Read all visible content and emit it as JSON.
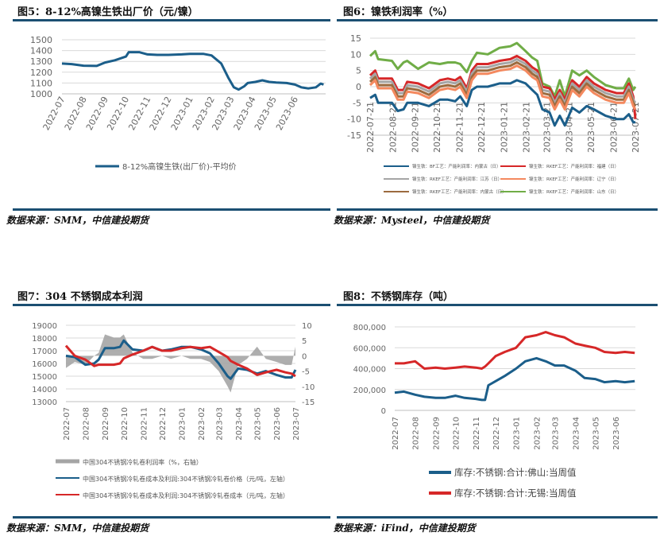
{
  "titles": {
    "fig5": "图5：8-12%高镍生铁出厂价（元/镍）",
    "fig6": "图6：镍铁利润率（%）",
    "fig7": "图7：304 不锈钢成本利润",
    "fig8": "图8：不锈钢库存（吨）"
  },
  "sources": {
    "fig5": "数据来源：SMM，中信建投期货",
    "fig6": "数据来源：Mysteel，中信建投期货",
    "fig7": "数据来源：SMM，中信建投期货",
    "fig8": "数据来源：iFind，中信建投期货"
  },
  "colors": {
    "rule": "#1b4f72"
  },
  "chart_data": [
    {
      "id": "c5",
      "type": "line",
      "title": "图5：8-12%高镍生铁出厂价（元/镍）",
      "ylim": [
        1000,
        1500
      ],
      "yticks": [
        "1500",
        "1400",
        "1300",
        "1200",
        "1100",
        "1000"
      ],
      "xticks": [
        "2022-07",
        "2022-08",
        "2022-09",
        "2022-10",
        "2022-11",
        "2022-12",
        "2023-01",
        "2023-02",
        "2023-03",
        "2023-04",
        "2023-05",
        "2023-06"
      ],
      "grid": true,
      "legend": "bottom",
      "series": [
        {
          "name": "8-12%高镍生铁(出厂价)-平均价",
          "color": "#1b5e8a",
          "x": [
            "2022-07-01",
            "2022-07-15",
            "2022-08-01",
            "2022-08-20",
            "2022-09-01",
            "2022-09-15",
            "2022-10-01",
            "2022-10-05",
            "2022-10-20",
            "2022-11-01",
            "2022-11-15",
            "2022-12-01",
            "2022-12-20",
            "2023-01-01",
            "2023-01-20",
            "2023-02-01",
            "2023-02-15",
            "2023-02-25",
            "2023-03-05",
            "2023-03-12",
            "2023-03-20",
            "2023-03-25",
            "2023-04-05",
            "2023-04-15",
            "2023-04-25",
            "2023-05-05",
            "2023-05-20",
            "2023-06-01",
            "2023-06-10",
            "2023-06-20",
            "2023-07-01",
            "2023-07-08",
            "2023-07-12"
          ],
          "values": [
            1280,
            1275,
            1260,
            1258,
            1290,
            1310,
            1345,
            1385,
            1385,
            1365,
            1360,
            1360,
            1365,
            1370,
            1370,
            1355,
            1280,
            1150,
            1060,
            1040,
            1070,
            1100,
            1110,
            1125,
            1110,
            1105,
            1100,
            1085,
            1060,
            1050,
            1060,
            1095,
            1085
          ]
        }
      ]
    },
    {
      "id": "c6",
      "type": "line",
      "title": "图6：镍铁利润率（%）",
      "ylim": [
        -15,
        15
      ],
      "yticks": [
        "15",
        "10",
        "5",
        "0",
        "-5",
        "-10",
        "-15"
      ],
      "xticks": [
        "2022-07-21",
        "2022-08-21",
        "2022-09-21",
        "2022-10-21",
        "2022-11-21",
        "2022-12-21",
        "2023-01-21",
        "2023-02-21",
        "2023-03-21",
        "2023-04-21",
        "2023-05-21",
        "2023-06-21",
        "2023-07-21"
      ],
      "grid": true,
      "legend": "bottom",
      "x": [
        "2022-07-21",
        "2022-07-28",
        "2022-08-01",
        "2022-08-20",
        "2022-08-28",
        "2022-09-05",
        "2022-09-10",
        "2022-09-25",
        "2022-10-10",
        "2022-10-25",
        "2022-11-05",
        "2022-11-15",
        "2022-11-22",
        "2022-12-01",
        "2022-12-08",
        "2022-12-15",
        "2022-12-30",
        "2023-01-15",
        "2023-01-30",
        "2023-02-08",
        "2023-02-20",
        "2023-03-01",
        "2023-03-08",
        "2023-03-15",
        "2023-03-25",
        "2023-04-01",
        "2023-04-08",
        "2023-04-15",
        "2023-04-25",
        "2023-05-05",
        "2023-05-15",
        "2023-05-25",
        "2023-06-10",
        "2023-06-25",
        "2023-07-05",
        "2023-07-12",
        "2023-07-18",
        "2023-07-21"
      ],
      "series": [
        {
          "name": "镍生铁：RKEF工艺：产能利润率：山东（日）",
          "color": "#70ad47",
          "values": [
            9.5,
            11,
            8.5,
            8,
            5.5,
            7.5,
            8,
            5.5,
            7.5,
            7,
            7.5,
            7.5,
            7,
            4.5,
            8,
            10.5,
            10,
            12,
            12.5,
            13.5,
            11,
            9,
            8,
            1,
            0,
            -3,
            2,
            -3,
            5,
            3.5,
            5,
            3,
            0.5,
            -0.5,
            -0.5,
            2.5,
            -1,
            0
          ]
        },
        {
          "name": "镍生铁：RKEF工艺：产能利润率：福建（日）",
          "color": "#d62728",
          "values": [
            3.5,
            5,
            2.5,
            2.5,
            -1,
            -1,
            1.5,
            1,
            -0.5,
            2,
            2.5,
            2,
            3,
            -0.5,
            5,
            7,
            7,
            8,
            8.5,
            9.5,
            8,
            6,
            5,
            0,
            -0.5,
            -4,
            -1,
            -4,
            2,
            0,
            3,
            1,
            -1,
            -2,
            -2,
            1,
            -3,
            -10
          ]
        },
        {
          "name": "镍生铁：RKEF工艺：产能利润率：江苏（日）",
          "color": "#a5a5a5",
          "values": [
            2.5,
            4,
            1.5,
            1.5,
            -2,
            -2,
            0.5,
            0,
            -1.5,
            1,
            1.5,
            1,
            2,
            -1.5,
            4,
            6,
            6,
            7,
            7.5,
            8.5,
            7,
            5,
            4,
            -1,
            -1.5,
            -5,
            -2,
            -5,
            1,
            -1,
            2,
            0,
            -2,
            -3,
            -3,
            0,
            -4,
            -5
          ]
        },
        {
          "name": "镍生铁：RKEF工艺：产能利润率：内蒙古（日）",
          "color": "#9c6b3f",
          "values": [
            1.5,
            3,
            0.5,
            0.5,
            -3,
            -3,
            -0.5,
            -1,
            -2.5,
            0,
            0.5,
            0,
            1,
            -2.5,
            3,
            5,
            5,
            6,
            6.5,
            7.5,
            6,
            4,
            3,
            -2,
            -2.5,
            -6,
            -3,
            -6,
            0,
            -2,
            1,
            -1,
            -3,
            -4,
            -4,
            -1,
            -5,
            -6
          ]
        },
        {
          "name": "镍生铁：RKEF工艺：产能利润率：辽宁（日）",
          "color": "#f4895f",
          "values": [
            0.5,
            2,
            -0.5,
            -0.5,
            -4,
            -4,
            -1.5,
            -2,
            -3.5,
            -1,
            -0.5,
            -1,
            0,
            -3.5,
            2,
            4,
            4,
            5,
            5.5,
            6.5,
            5,
            3,
            2,
            -3,
            -3.5,
            -7,
            -4,
            -7,
            -1,
            -3,
            0,
            -2,
            -4,
            -5,
            -5,
            -2,
            -6,
            -7
          ]
        },
        {
          "name": "镍生铁：BF工艺：产能利润率：内蒙古（日）",
          "color": "#1b5e8a",
          "values": [
            -3.5,
            -2.5,
            -5,
            -5,
            -7.5,
            -7,
            -5,
            -5,
            -6,
            -4,
            -4,
            -4.5,
            -3,
            -6,
            -1,
            0,
            0,
            1,
            1,
            2,
            1,
            -1,
            -2.5,
            -7,
            -8,
            -12,
            -9,
            -12,
            -6.5,
            -8,
            -6,
            -7,
            -9,
            -10,
            -10,
            -8.5,
            -11,
            -11
          ]
        }
      ]
    },
    {
      "id": "c7",
      "type": "line",
      "title": "图7：304 不锈钢成本利润",
      "ylim": [
        13000,
        19000
      ],
      "y2lim": [
        -15,
        10
      ],
      "yticks": [
        "19000",
        "18000",
        "17000",
        "16000",
        "15000",
        "14000",
        "13000"
      ],
      "y2ticks": [
        "10",
        "5",
        "0",
        "-5",
        "-10",
        "-15"
      ],
      "xticks": [
        "2022-07",
        "2022-08",
        "2022-09",
        "2022-10",
        "2022-11",
        "2022-12",
        "2023-01",
        "2023-02",
        "2023-03",
        "2023-04",
        "2023-05",
        "2023-06",
        "2023-07"
      ],
      "grid": true,
      "legend": "bottom",
      "x": [
        "2022-07-01",
        "2022-07-15",
        "2022-08-01",
        "2022-08-15",
        "2022-08-22",
        "2022-09-01",
        "2022-09-15",
        "2022-09-25",
        "2022-10-01",
        "2022-10-15",
        "2022-11-01",
        "2022-11-15",
        "2022-12-01",
        "2022-12-15",
        "2023-01-01",
        "2023-01-15",
        "2023-02-01",
        "2023-02-15",
        "2023-03-01",
        "2023-03-15",
        "2023-03-20",
        "2023-04-01",
        "2023-04-15",
        "2023-05-01",
        "2023-05-15",
        "2023-06-01",
        "2023-06-15",
        "2023-06-25",
        "2023-07-01"
      ],
      "series": [
        {
          "name": "中国304不锈钢冷轧卷利润率（%，右轴）",
          "color": "#a5a5a5",
          "axis": "right",
          "kind": "area",
          "values": [
            -4,
            -2,
            -3,
            0,
            1,
            7,
            6,
            6,
            7,
            1,
            -1,
            -1,
            0,
            -1,
            0,
            -1,
            -1,
            -2,
            -5,
            -10,
            -12,
            -3,
            -1,
            3,
            -1,
            -2,
            -3,
            -3,
            3
          ]
        },
        {
          "name": "中国304不锈钢冷轧卷成本及利润:304不锈钢冷轧卷价格（元/吨，左轴）",
          "color": "#1b5e8a",
          "axis": "left",
          "values": [
            16600,
            16500,
            15900,
            16000,
            16300,
            17200,
            17200,
            17300,
            17800,
            17100,
            17000,
            17300,
            17000,
            17100,
            17300,
            17300,
            17100,
            16800,
            16000,
            15000,
            14800,
            15600,
            15500,
            15200,
            15400,
            15100,
            14900,
            14900,
            15500
          ]
        },
        {
          "name": "中国304不锈钢冷轧卷成本及利润:304不锈钢冷轧卷成本（元/吨，左轴）",
          "color": "#d62728",
          "axis": "left",
          "values": [
            17400,
            16600,
            16300,
            15800,
            15900,
            15900,
            15900,
            16000,
            16400,
            16700,
            17000,
            17300,
            17000,
            17000,
            17200,
            17300,
            17200,
            17300,
            16900,
            16500,
            16200,
            15900,
            15600,
            15100,
            15300,
            15500,
            15300,
            15200,
            15000
          ]
        }
      ]
    },
    {
      "id": "c8",
      "type": "line",
      "title": "图8：不锈钢库存（吨）",
      "ylim": [
        0,
        800000
      ],
      "yticks": [
        "800,000",
        "600,000",
        "400,000",
        "200,000",
        "0"
      ],
      "xticks": [
        "2022-07",
        "2022-08",
        "2022-09",
        "2022-10",
        "2022-11",
        "2022-12",
        "2023-01",
        "2023-02",
        "2023-03",
        "2023-04",
        "2023-05",
        "2023-06"
      ],
      "grid": true,
      "legend": "bottom",
      "x": [
        "2022-07-01",
        "2022-07-15",
        "2022-08-01",
        "2022-08-15",
        "2022-09-01",
        "2022-09-15",
        "2022-10-01",
        "2022-10-15",
        "2022-11-01",
        "2022-11-10",
        "2022-11-15",
        "2022-11-20",
        "2022-12-01",
        "2022-12-15",
        "2023-01-01",
        "2023-01-15",
        "2023-02-01",
        "2023-02-15",
        "2023-03-01",
        "2023-03-15",
        "2023-04-01",
        "2023-04-15",
        "2023-05-01",
        "2023-05-15",
        "2023-06-01",
        "2023-06-15",
        "2023-06-30"
      ],
      "series": [
        {
          "name": "库存:不锈钢:合计:佛山:当周值",
          "color": "#1b5e8a",
          "values": [
            170000,
            180000,
            150000,
            130000,
            120000,
            120000,
            140000,
            120000,
            110000,
            100000,
            100000,
            240000,
            280000,
            330000,
            400000,
            470000,
            500000,
            470000,
            430000,
            430000,
            380000,
            310000,
            300000,
            270000,
            280000,
            270000,
            280000
          ]
        },
        {
          "name": "库存:不锈钢:合计:无锡:当周值",
          "color": "#d62728",
          "values": [
            450000,
            450000,
            470000,
            400000,
            410000,
            400000,
            410000,
            420000,
            410000,
            400000,
            420000,
            450000,
            520000,
            560000,
            600000,
            700000,
            720000,
            750000,
            720000,
            700000,
            640000,
            620000,
            600000,
            560000,
            550000,
            560000,
            550000
          ]
        }
      ]
    }
  ]
}
